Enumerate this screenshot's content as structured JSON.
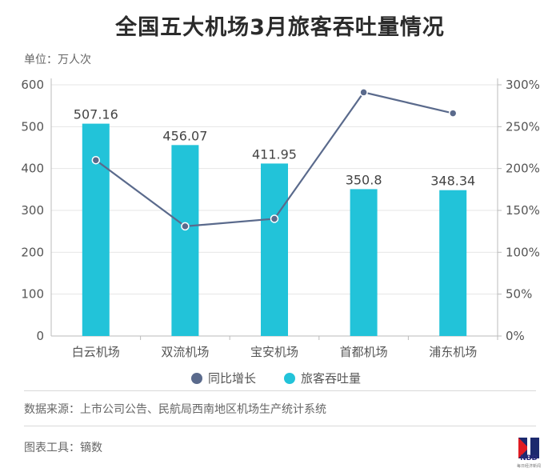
{
  "header": {
    "title": "全国五大机场3月旅客吞吐量情况",
    "unit": "单位：万人次"
  },
  "footer": {
    "source": "数据来源：上市公司公告、民航局西南地区机场生产统计系统",
    "tool": "图表工具：镝数",
    "logo_text": "NBD",
    "logo_sub": "每日经济新闻"
  },
  "colors": {
    "bar": "#22c3d9",
    "line": "#5a6a8c",
    "grid": "#e6e6e6",
    "axis": "#bbbbbb",
    "text": "#555555"
  },
  "chart_data": {
    "type": "bar",
    "categories": [
      "白云机场",
      "双流机场",
      "宝安机场",
      "首都机场",
      "浦东机场"
    ],
    "series": [
      {
        "name": "旅客吞吐量",
        "type": "bar",
        "axis": "left",
        "values": [
          507.16,
          456.07,
          411.95,
          350.8,
          348.34
        ],
        "labels": [
          "507.16",
          "456.07",
          "411.95",
          "350.8",
          "348.34"
        ]
      },
      {
        "name": "同比增长",
        "type": "line",
        "axis": "right",
        "values": [
          210,
          131,
          140,
          291,
          266
        ]
      }
    ],
    "y_left": {
      "range": [
        0,
        600
      ],
      "ticks": [
        0,
        100,
        200,
        300,
        400,
        500,
        600
      ],
      "tick_labels": [
        "0",
        "100",
        "200",
        "300",
        "400",
        "500",
        "600"
      ]
    },
    "y_right": {
      "range": [
        0,
        300
      ],
      "ticks": [
        0,
        50,
        100,
        150,
        200,
        250,
        300
      ],
      "tick_labels": [
        "0%",
        "50%",
        "100%",
        "150%",
        "200%",
        "250%",
        "300%"
      ]
    },
    "legend": {
      "position": "bottom-center",
      "entries": [
        "同比增长",
        "旅客吞吐量"
      ]
    },
    "grid": true
  }
}
